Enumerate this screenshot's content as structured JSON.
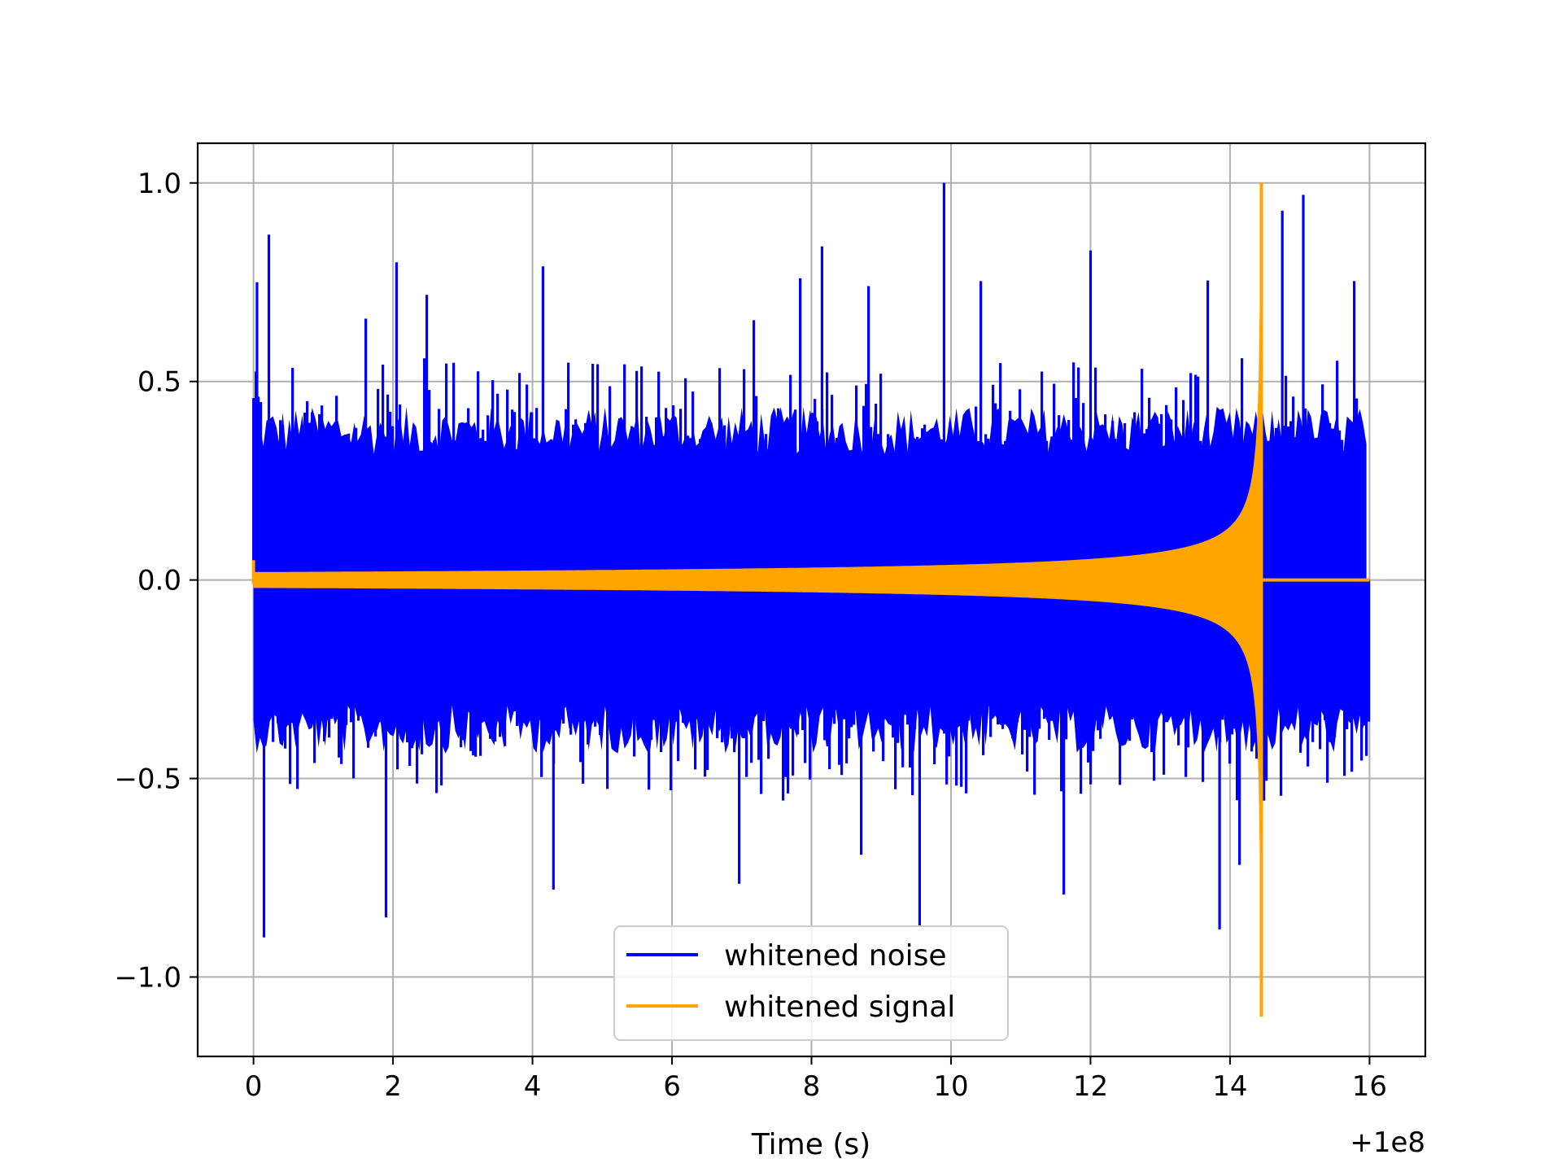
{
  "chart_data": {
    "type": "line",
    "title": "",
    "xlabel": "Time (s)",
    "ylabel": "",
    "x_offset_label": "+1e8",
    "xlim": [
      -0.8,
      16.8
    ],
    "ylim": [
      -1.2,
      1.1
    ],
    "xticks": [
      0,
      2,
      4,
      6,
      8,
      10,
      12,
      14,
      16
    ],
    "xtick_labels": [
      "0",
      "2",
      "4",
      "6",
      "8",
      "10",
      "12",
      "14",
      "16"
    ],
    "yticks": [
      -1.0,
      -0.5,
      0.0,
      0.5,
      1.0
    ],
    "ytick_labels": [
      "−1.0",
      "−0.5",
      "0.0",
      "0.5",
      "1.0"
    ],
    "grid": true,
    "legend": {
      "location": "lower center",
      "entries": [
        "whitened noise",
        "whitened signal"
      ]
    },
    "series": [
      {
        "name": "whitened noise",
        "color": "#0000ff",
        "description_values": {
          "x_range": [
            0,
            16
          ],
          "typical_amplitude": 0.35,
          "max_peak": 1.0,
          "max_peak_x": 9.9,
          "min_trough": -0.9,
          "min_trough_x": 0.15,
          "notable_peaks": [
            {
              "x": 0.05,
              "y": 0.75
            },
            {
              "x": 0.22,
              "y": 0.87
            },
            {
              "x": 2.05,
              "y": 0.8
            },
            {
              "x": 4.15,
              "y": 0.79
            },
            {
              "x": 8.15,
              "y": 0.84
            },
            {
              "x": 9.9,
              "y": 1.0
            },
            {
              "x": 12.0,
              "y": 0.83
            },
            {
              "x": 14.75,
              "y": 0.93
            },
            {
              "x": 15.05,
              "y": 0.97
            }
          ],
          "notable_troughs": [
            {
              "x": 0.15,
              "y": -0.9
            },
            {
              "x": 1.9,
              "y": -0.85
            },
            {
              "x": 4.3,
              "y": -0.78
            },
            {
              "x": 9.55,
              "y": -0.87
            },
            {
              "x": 13.85,
              "y": -0.88
            }
          ]
        }
      },
      {
        "name": "whitened signal",
        "color": "#ffa500",
        "description_values": {
          "type": "chirp",
          "x_range": [
            0,
            16
          ],
          "initial_amplitude": 0.02,
          "merger_time": 14.45,
          "peak": 1.0,
          "trough": -1.1,
          "post_merger_value": 0.0
        }
      }
    ]
  }
}
